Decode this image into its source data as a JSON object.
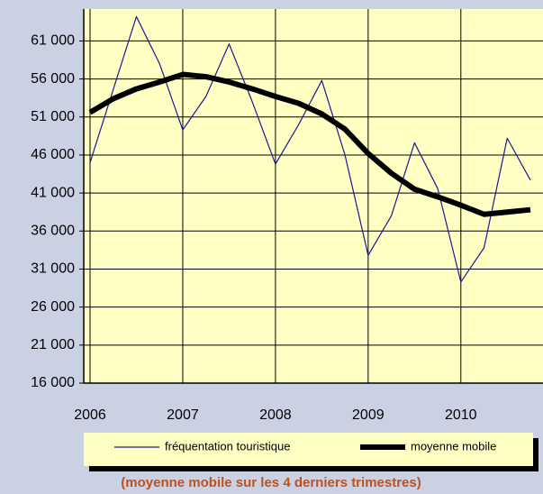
{
  "chart_data": {
    "type": "line",
    "x": [
      2006,
      2006.25,
      2006.5,
      2006.75,
      2007,
      2007.25,
      2007.5,
      2007.75,
      2008,
      2008.25,
      2008.5,
      2008.75,
      2009,
      2009.25,
      2009.5,
      2009.75,
      2010,
      2010.25,
      2010.5,
      2010.75
    ],
    "series": [
      {
        "name": "fréquentation touristique",
        "color": "#1a1a8c",
        "width": 1.2,
        "values": [
          45000,
          54600,
          64200,
          58000,
          49300,
          53700,
          60600,
          53000,
          44800,
          50000,
          55800,
          46000,
          32800,
          38000,
          47600,
          41600,
          29300,
          33800,
          48200,
          42700
        ]
      },
      {
        "name": "moyenne mobile",
        "color": "#000000",
        "width": 6,
        "values": [
          51600,
          53400,
          54700,
          55600,
          56600,
          56300,
          55600,
          54700,
          53700,
          52800,
          51400,
          49400,
          46200,
          43600,
          41500,
          40500,
          39400,
          38200,
          38500,
          38800
        ]
      }
    ],
    "xlim": [
      2006,
      2010.75
    ],
    "xticks": [
      2006,
      2007,
      2008,
      2009,
      2010
    ],
    "ylim": [
      16000,
      65200
    ],
    "yticks": [
      {
        "value": 16000,
        "label": "16 000"
      },
      {
        "value": 21000,
        "label": "21 000"
      },
      {
        "value": 26000,
        "label": "26 000"
      },
      {
        "value": 31000,
        "label": "31 000"
      },
      {
        "value": 36000,
        "label": "36 000"
      },
      {
        "value": 41000,
        "label": "41 000"
      },
      {
        "value": 46000,
        "label": "46 000"
      },
      {
        "value": 51000,
        "label": "51 000"
      },
      {
        "value": 56000,
        "label": "56 000"
      },
      {
        "value": 61000,
        "label": "61 000"
      }
    ],
    "grid": true,
    "legend": "bottom",
    "annotation": "(moyenne mobile sur les 4 derniers trimestres)"
  }
}
